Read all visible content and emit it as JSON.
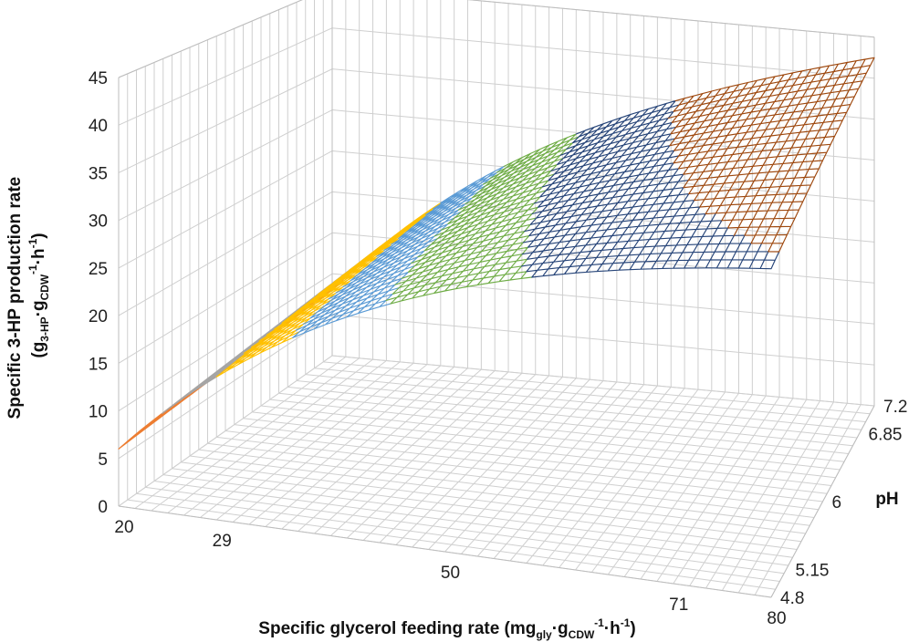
{
  "chart_data": {
    "type": "surface-3d-wireframe",
    "title": "",
    "xlabel_parts": [
      "Specific glycerol feeding rate (mg",
      "gly",
      "·g",
      "CDW",
      "-1",
      "·h",
      "-1",
      ")"
    ],
    "ylabel_parts": [
      "Specific 3-HP production rate",
      "(g",
      "3-HP",
      "·g",
      "CDW",
      "-1",
      "·h",
      "-1",
      ")"
    ],
    "zlabel": "pH",
    "x_ticks": [
      "20",
      "29",
      "50",
      "71",
      "80"
    ],
    "y_ticks": [
      "0",
      "5",
      "10",
      "15",
      "20",
      "25",
      "30",
      "35",
      "40",
      "45"
    ],
    "z_ticks": [
      "4.8",
      "5.15",
      "6",
      "6.85",
      "7.2"
    ],
    "xlim": [
      20,
      80
    ],
    "ylim": [
      0,
      45
    ],
    "zlim": [
      4.8,
      7.2
    ],
    "grid": true,
    "legend": "none",
    "bands": [
      {
        "range": [
          0,
          5
        ],
        "color": "#4472c4"
      },
      {
        "range": [
          5,
          10
        ],
        "color": "#ed7d31"
      },
      {
        "range": [
          10,
          15
        ],
        "color": "#a5a5a5"
      },
      {
        "range": [
          15,
          20
        ],
        "color": "#ffc000"
      },
      {
        "range": [
          20,
          25
        ],
        "color": "#5b9bd5"
      },
      {
        "range": [
          25,
          30
        ],
        "color": "#70ad47"
      },
      {
        "range": [
          30,
          35
        ],
        "color": "#264478"
      },
      {
        "range": [
          35,
          45
        ],
        "color": "#9e480e"
      }
    ],
    "surface_samples": [
      {
        "x": 20,
        "z": 4.8,
        "y": 6
      },
      {
        "x": 29,
        "z": 4.8,
        "y": 15
      },
      {
        "x": 50,
        "z": 4.8,
        "y": 26
      },
      {
        "x": 71,
        "z": 4.8,
        "y": 33
      },
      {
        "x": 80,
        "z": 4.8,
        "y": 34
      },
      {
        "x": 80,
        "z": 6,
        "y": 40
      },
      {
        "x": 80,
        "z": 7.2,
        "y": 42
      },
      {
        "x": 20,
        "z": 7.2,
        "y": 8
      }
    ]
  }
}
